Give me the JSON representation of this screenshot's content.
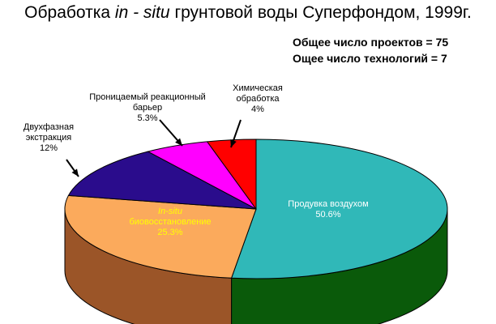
{
  "chart_data": {
    "type": "pie",
    "title": {
      "part1": "Обработка  ",
      "italic": "in - situ",
      "part2": "  грунтовой воды Суперфондом, 1999г."
    },
    "stats": [
      "Общее число проектов = 75",
      "Ощее число технологий = 7"
    ],
    "slices": [
      {
        "label": "Продувка воздухом",
        "value_label": "50.6%",
        "value": 50.6,
        "color": "#30B8B8",
        "side_color": "#0A5A0A",
        "text_color": "#ffffff"
      },
      {
        "label_italic": "In-situ",
        "label": "биовосстановление",
        "value_label": "25.3%",
        "value": 25.3,
        "color": "#FBAA5C",
        "side_color": "#9B5528",
        "text_color": "#ffff00"
      },
      {
        "label": "Двухфазная экстракция",
        "label_lines": [
          "Двухфазная",
          "экстракция"
        ],
        "value_label": "12%",
        "value": 12.0,
        "color": "#2A0C8C",
        "side_color": "#1A0660",
        "text_color": "#000000"
      },
      {
        "label": "Проницаемый реакционный барьер",
        "label_lines": [
          "Проницаемый реакционный",
          "барьер"
        ],
        "value_label": "5.3%",
        "value": 5.3,
        "color": "#FF00FF",
        "side_color": "#990099",
        "text_color": "#000000"
      },
      {
        "label": "Химическая обработка",
        "label_lines": [
          "Химическая",
          "обработка"
        ],
        "value_label": "4%",
        "value": 4.0,
        "color": "#FF0000",
        "side_color": "#990000",
        "text_color": "#000000"
      }
    ]
  }
}
